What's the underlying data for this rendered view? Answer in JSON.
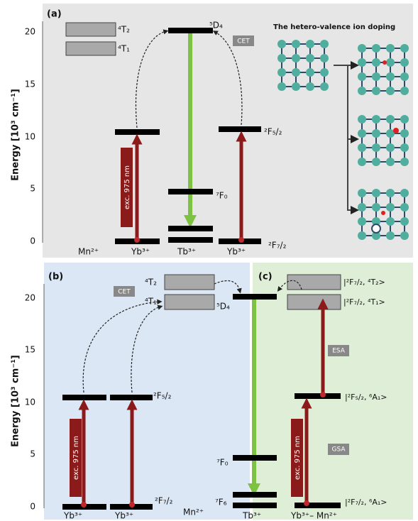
{
  "panel_a": {
    "label": "(a)",
    "axis_title": "Energy [10³ cm⁻¹]",
    "yticks": [
      "0",
      "5",
      "10",
      "15",
      "20"
    ],
    "states": {
      "mn_4t2": "⁴T₂",
      "mn_4t1": "⁴T₁",
      "tb_5d4": "⁵D₄",
      "tb_7f0": "⁷F₀",
      "yb_2f52": "²F₅/₂",
      "yb_2f72": "²F₇/₂"
    },
    "tag": "CET",
    "excitation": "exc. 975 nm",
    "ions": [
      "Mn²⁺",
      "Yb³⁺",
      "Tb³⁺",
      "Yb³⁺"
    ],
    "doping_title": "The hetero-valence ion doping"
  },
  "panel_b": {
    "label": "(b)",
    "axis_title": "Energy [10³ cm⁻¹]",
    "yticks": [
      "0",
      "5",
      "10",
      "15",
      "20"
    ],
    "states": {
      "mn_4t2": "⁴T₂",
      "mn_4t1": "⁴T₁",
      "yb_2f52": "²F₅/₂",
      "yb_2f72": "²F₇/₂",
      "tb_5d4": "⁵D₄",
      "tb_7f0": "⁷F₀",
      "tb_7f6": "⁷F₆"
    },
    "tag": "CET",
    "excitation": "exc. 975 nm",
    "ions": [
      "Yb³⁺",
      "Yb³⁺",
      "Mn²⁺",
      "Tb³⁺"
    ]
  },
  "panel_c": {
    "label": "(c)",
    "states": [
      "|²F₇/₂, ⁴T₂>",
      "|²F₇/₂, ⁴T₁>",
      "|²F₅/₂, ⁶A₁>",
      "|²F₇/₂, ⁶A₁>"
    ],
    "tags": [
      "ESA",
      "GSA"
    ],
    "excitation": "exc. 975 nm",
    "ion": "Yb³⁺– Mn²⁺"
  }
}
